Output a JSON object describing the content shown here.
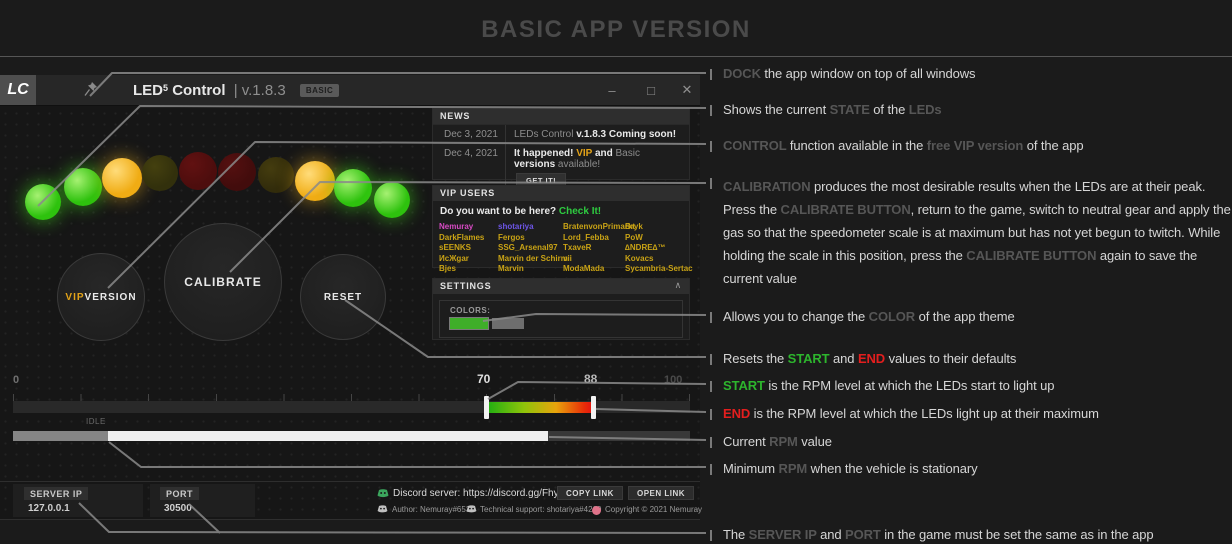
{
  "page": {
    "title": "BASIC APP VERSION"
  },
  "window": {
    "logo": "LC",
    "title_led": "LED",
    "title_sup": "5",
    "title_rest": "Control",
    "version": "| v.1.8.3",
    "badge": "BASIC",
    "minimize_icon": "–",
    "maximize_icon": "□",
    "close_icon": "✕"
  },
  "leds": [
    {
      "state": "on",
      "color": "#2ec20e",
      "hi": "#a6f172",
      "glow": "rgba(64,220,24,0.45)"
    },
    {
      "state": "on",
      "color": "#2ec20e",
      "hi": "#a6f172",
      "glow": "rgba(64,220,24,0.45)"
    },
    {
      "state": "on",
      "color": "#f0ac14",
      "hi": "#ffdc7a",
      "glow": "rgba(240,180,30,0.40)"
    },
    {
      "state": "off",
      "color": "#32300c",
      "hi": "#44400f",
      "glow": ""
    },
    {
      "state": "off",
      "color": "#4d0d0d",
      "hi": "#611111",
      "glow": ""
    },
    {
      "state": "off",
      "color": "#420c0c",
      "hi": "#551010",
      "glow": ""
    },
    {
      "state": "off",
      "color": "#322c0b",
      "hi": "#443c0e",
      "glow": ""
    },
    {
      "state": "on",
      "color": "#f0ac14",
      "hi": "#ffdc7a",
      "glow": "rgba(240,180,30,0.40)"
    },
    {
      "state": "on",
      "color": "#2ec20e",
      "hi": "#a6f172",
      "glow": "rgba(64,220,24,0.45)"
    },
    {
      "state": "on",
      "color": "#2ec20e",
      "hi": "#a6f172",
      "glow": "rgba(64,220,24,0.45)"
    }
  ],
  "buttons": {
    "vip": [
      {
        "t": "VIP ",
        "c": "y"
      },
      {
        "t": "VERSION",
        "c": "wb"
      }
    ],
    "calibrate": "CALIBRATE",
    "reset": "RESET"
  },
  "news": {
    "header": "NEWS",
    "rows": [
      {
        "date": "Dec 3, 2021",
        "segments": [
          {
            "t": "LEDs Control ",
            "c": "dim"
          },
          {
            "t": "v.1.8.3 Coming soon!",
            "c": "wb"
          }
        ]
      },
      {
        "date": "Dec 4, 2021",
        "segments": [
          {
            "t": "It happened! ",
            "c": "wb"
          },
          {
            "t": "VIP ",
            "c": "y"
          },
          {
            "t": "and ",
            "c": "wb"
          },
          {
            "t": "Basic ",
            "c": "dim"
          },
          {
            "t": "versions ",
            "c": "wb"
          },
          {
            "t": "available!",
            "c": "dim"
          }
        ],
        "button": "GET IT!"
      }
    ]
  },
  "vip_users": {
    "header": "VIP USERS",
    "prompt": [
      {
        "t": "Do you want to be here? ",
        "c": "wb"
      },
      {
        "t": "Check It!",
        "c": "link"
      }
    ],
    "columns": [
      [
        {
          "t": "Nemuray",
          "cls": "p"
        },
        {
          "t": "DarkFlames",
          "cls": "y"
        },
        {
          "t": "sEENKS",
          "cls": "y"
        },
        {
          "t": "ИcЖgar",
          "cls": "yb"
        },
        {
          "t": "Bjes",
          "cls": "y"
        }
      ],
      [
        {
          "t": "shotariya",
          "cls": "b"
        },
        {
          "t": "Fergos",
          "cls": "y"
        },
        {
          "t": "SSG_Arsenal97",
          "cls": "y"
        },
        {
          "t": "Marvin der Schirm",
          "cls": "y"
        },
        {
          "t": "Marvin",
          "cls": "y"
        }
      ],
      [
        {
          "t": "BratenvonPrimarkt",
          "cls": "y"
        },
        {
          "t": "Lord_Febba",
          "cls": "y"
        },
        {
          "t": "TxaveR",
          "cls": "y"
        },
        {
          "t": "vii",
          "cls": "y"
        },
        {
          "t": "ModaMada",
          "cls": "y"
        }
      ],
      [
        {
          "t": "Bryk",
          "cls": "y"
        },
        {
          "t": "PoW",
          "cls": "y"
        },
        {
          "t": "∆NDRE∆™",
          "cls": "y"
        },
        {
          "t": "Kovacs",
          "cls": "y"
        },
        {
          "t": "Sycambria-Sertac",
          "cls": "y"
        }
      ]
    ]
  },
  "settings": {
    "header": "SETTINGS",
    "collapse_icon": "∧",
    "colors_label": "COLORS:",
    "swatches": [
      {
        "color": "#3fae29",
        "selected": true
      },
      {
        "color": "#6e6e6e",
        "selected": false
      }
    ]
  },
  "slider": {
    "min": "0",
    "start": "70",
    "end": "88",
    "max": "100",
    "idle": "IDLE"
  },
  "footer": {
    "server_ip_label": "SERVER IP",
    "server_ip": "127.0.0.1",
    "port_label": "PORT",
    "port": "30500",
    "discord": "Discord server: https://discord.gg/FhyHswfcnw",
    "copy": "COPY LINK",
    "open": "OPEN LINK",
    "author": "Author: Nemuray#6538",
    "support": "Technical support: shotariya#4269",
    "copyright": "Copyright © 2021 Nemuray"
  },
  "annotations": [
    [
      {
        "t": "DOCK ",
        "c": "d"
      },
      {
        "t": "the app window on top of all windows",
        "c": "w"
      }
    ],
    [
      {
        "t": "Shows the current ",
        "c": "w"
      },
      {
        "t": "STATE ",
        "c": "d"
      },
      {
        "t": "of the ",
        "c": "w"
      },
      {
        "t": "LEDs",
        "c": "d"
      }
    ],
    [
      {
        "t": "CONTROL ",
        "c": "d"
      },
      {
        "t": "function available in the ",
        "c": "w"
      },
      {
        "t": "free VIP version ",
        "c": "d"
      },
      {
        "t": "of the app",
        "c": "w"
      }
    ],
    [
      {
        "t": "CALIBRATION ",
        "c": "d"
      },
      {
        "t": "produces the most desirable results when the LEDs are at their peak. Press the ",
        "c": "w"
      },
      {
        "t": "CALIBRATE BUTTON",
        "c": "d"
      },
      {
        "t": ", return to the game, switch to neutral gear and apply the gas so that the speedometer scale is at maximum but has not yet begun to twitch. While holding the scale in this position, press the ",
        "c": "w"
      },
      {
        "t": "CALIBRATE BUTTON ",
        "c": "d"
      },
      {
        "t": "again to save the current value",
        "c": "w"
      }
    ],
    [
      {
        "t": "Allows you to change the ",
        "c": "w"
      },
      {
        "t": "COLOR ",
        "c": "d"
      },
      {
        "t": "of the app theme",
        "c": "w"
      }
    ],
    [
      {
        "t": "Resets the ",
        "c": "w"
      },
      {
        "t": "START ",
        "c": "g"
      },
      {
        "t": "and ",
        "c": "w"
      },
      {
        "t": "END ",
        "c": "r"
      },
      {
        "t": "values to their defaults",
        "c": "w"
      }
    ],
    [
      {
        "t": "START ",
        "c": "g"
      },
      {
        "t": "is the RPM level at which the LEDs start to light up",
        "c": "w"
      }
    ],
    [
      {
        "t": "END ",
        "c": "r"
      },
      {
        "t": "is the RPM level at which the LEDs light up at their maximum",
        "c": "w"
      }
    ],
    [
      {
        "t": "Current ",
        "c": "w"
      },
      {
        "t": "RPM ",
        "c": "d"
      },
      {
        "t": "value",
        "c": "w"
      }
    ],
    [
      {
        "t": "Minimum ",
        "c": "w"
      },
      {
        "t": "RPM ",
        "c": "d"
      },
      {
        "t": "when the vehicle is stationary",
        "c": "w"
      }
    ],
    [
      {
        "t": "The ",
        "c": "w"
      },
      {
        "t": "SERVER IP ",
        "c": "d"
      },
      {
        "t": "and ",
        "c": "w"
      },
      {
        "t": "PORT ",
        "c": "d"
      },
      {
        "t": "in the game must be set the same as in the app",
        "c": "w"
      }
    ]
  ],
  "colors": {
    "accent_green": "#2db52d",
    "accent_red": "#e41e1e",
    "accent_yellow": "#e3a318",
    "link_green": "#2ecc40",
    "led_green": "#2ec20e",
    "led_yellow": "#f0ac14"
  }
}
